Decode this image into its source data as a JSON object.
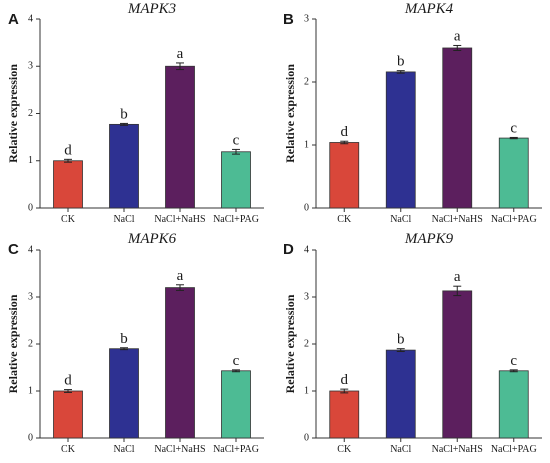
{
  "chart_data": [
    {
      "type": "bar",
      "panel": "A",
      "title": "MAPK3",
      "ylabel": "Relative expression",
      "xlabel": "",
      "ylim": [
        0,
        4
      ],
      "yticks": [
        "0",
        "1",
        "2",
        "3",
        "4"
      ],
      "categories": [
        "CK",
        "NaCl",
        "NaCl+NaHS",
        "NaCl+PAG"
      ],
      "values": [
        1.0,
        1.77,
        3.0,
        1.19
      ],
      "errors": [
        0.03,
        0.02,
        0.07,
        0.05
      ],
      "significance": [
        "d",
        "b",
        "a",
        "c"
      ],
      "colors": [
        "#d9473a",
        "#2e3192",
        "#5c1f5e",
        "#4dbb94"
      ]
    },
    {
      "type": "bar",
      "panel": "B",
      "title": "MAPK4",
      "ylabel": "Relative expression",
      "xlabel": "",
      "ylim": [
        0,
        3
      ],
      "yticks": [
        "0",
        "1",
        "2",
        "3"
      ],
      "categories": [
        "CK",
        "NaCl",
        "NaCl+NaHS",
        "NaCl+PAG"
      ],
      "values": [
        1.04,
        2.16,
        2.54,
        1.11
      ],
      "errors": [
        0.02,
        0.02,
        0.04,
        0.01
      ],
      "significance": [
        "d",
        "b",
        "a",
        "c"
      ],
      "colors": [
        "#d9473a",
        "#2e3192",
        "#5c1f5e",
        "#4dbb94"
      ]
    },
    {
      "type": "bar",
      "panel": "C",
      "title": "MAPK6",
      "ylabel": "Relative expression",
      "xlabel": "",
      "ylim": [
        0,
        4
      ],
      "yticks": [
        "0",
        "1",
        "2",
        "3",
        "4"
      ],
      "categories": [
        "CK",
        "NaCl",
        "NaCl+NaHS",
        "NaCl+PAG"
      ],
      "values": [
        1.0,
        1.9,
        3.2,
        1.43
      ],
      "errors": [
        0.03,
        0.02,
        0.06,
        0.02
      ],
      "significance": [
        "d",
        "b",
        "a",
        "c"
      ],
      "colors": [
        "#d9473a",
        "#2e3192",
        "#5c1f5e",
        "#4dbb94"
      ]
    },
    {
      "type": "bar",
      "panel": "D",
      "title": "MAPK9",
      "ylabel": "Relative expression",
      "xlabel": "",
      "ylim": [
        0,
        4
      ],
      "yticks": [
        "0",
        "1",
        "2",
        "3",
        "4"
      ],
      "categories": [
        "CK",
        "NaCl",
        "NaCl+NaHS",
        "NaCl+PAG"
      ],
      "values": [
        1.0,
        1.87,
        3.13,
        1.43
      ],
      "errors": [
        0.04,
        0.03,
        0.1,
        0.02
      ],
      "significance": [
        "d",
        "b",
        "a",
        "c"
      ],
      "colors": [
        "#d9473a",
        "#2e3192",
        "#5c1f5e",
        "#4dbb94"
      ]
    }
  ]
}
